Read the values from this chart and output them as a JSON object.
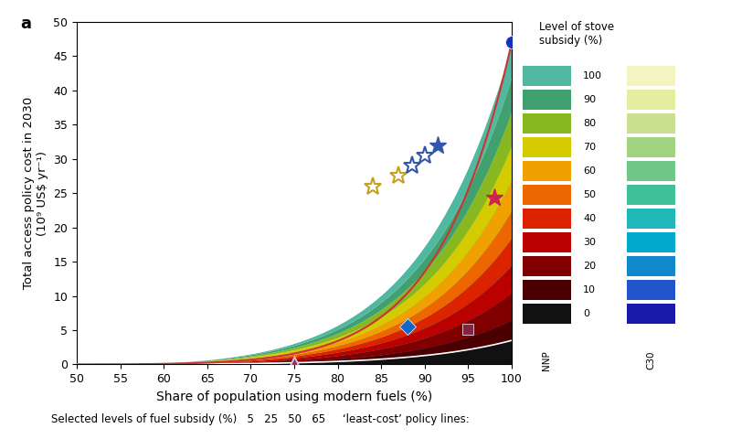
{
  "title_label": "a",
  "xlabel": "Share of population using modern fuels (%)",
  "ylabel": "Total access policy cost in 2030\n(10⁹ US$ yr⁻¹)",
  "xlim": [
    50,
    100
  ],
  "ylim": [
    0,
    50
  ],
  "xticks": [
    50,
    55,
    60,
    65,
    70,
    75,
    80,
    85,
    90,
    95,
    100
  ],
  "yticks": [
    0,
    5,
    10,
    15,
    20,
    25,
    30,
    35,
    40,
    45,
    50
  ],
  "legend_title": "Level of stove\nsubsidy (%)",
  "legend_labels": [
    100,
    90,
    80,
    70,
    60,
    50,
    40,
    30,
    20,
    10,
    0
  ],
  "nnp_colors_ordered": [
    "#111111",
    "#4a0000",
    "#800000",
    "#bb0000",
    "#dd2200",
    "#ee6600",
    "#f0a000",
    "#d4cc00",
    "#88b820",
    "#40a070",
    "#50b8a0"
  ],
  "c30_colors_ordered": [
    "#1a1aaa",
    "#2255cc",
    "#1188cc",
    "#00aacc",
    "#20b8b8",
    "#40c098",
    "#70c888",
    "#a0d480",
    "#c8e090",
    "#e4eea0",
    "#f4f4c0"
  ],
  "bottom_text": "Selected levels of fuel subsidy (%)   5   25   50   65     ‘least-cost’ policy lines:"
}
